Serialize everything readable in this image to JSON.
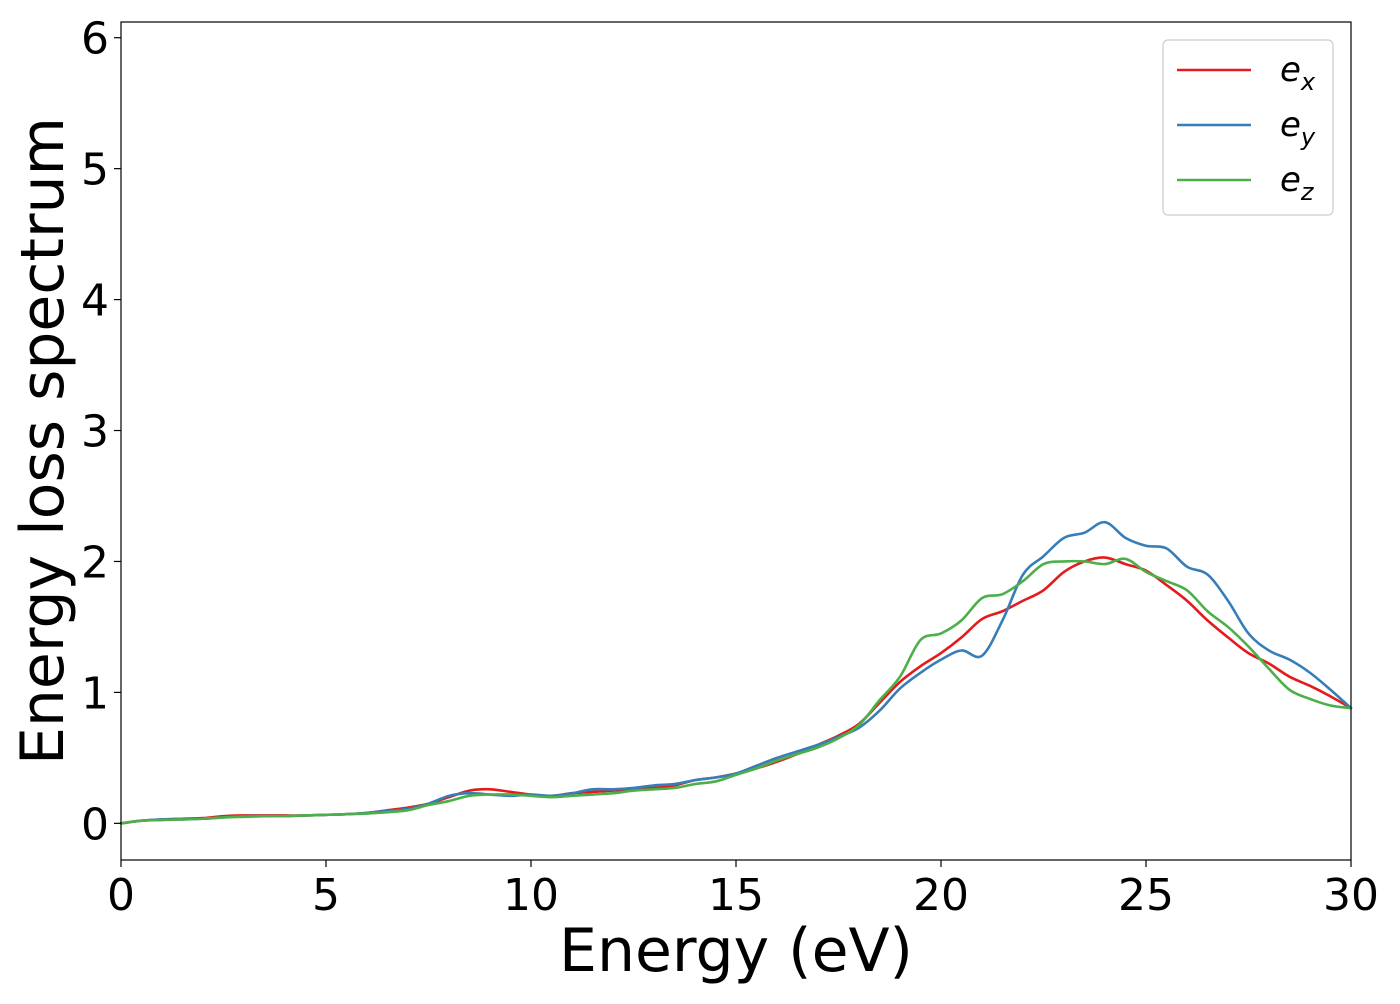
{
  "chart_data": {
    "type": "line",
    "title": "",
    "xlabel": "Energy (eV)",
    "ylabel": "Energy loss spectrum",
    "xlim": [
      0,
      30
    ],
    "ylim": [
      -0.28,
      6.12
    ],
    "xticks": [
      0,
      5,
      10,
      15,
      20,
      25,
      30
    ],
    "yticks": [
      0,
      1,
      2,
      3,
      4,
      5,
      6
    ],
    "grid": false,
    "legend_position": "top-right",
    "series": [
      {
        "name": "e_x",
        "legend": {
          "base": "e",
          "sub": "x"
        },
        "color": "#e41a1c",
        "x": [
          0,
          0.5,
          1,
          1.5,
          2,
          2.5,
          3,
          3.5,
          4,
          4.5,
          5,
          5.5,
          6,
          6.5,
          7,
          7.5,
          8,
          8.5,
          9,
          9.5,
          10,
          10.5,
          11,
          11.5,
          12,
          12.5,
          13,
          13.5,
          14,
          14.5,
          15,
          15.5,
          16,
          16.5,
          17,
          17.5,
          18,
          18.5,
          19,
          19.5,
          20,
          20.5,
          21,
          21.5,
          22,
          22.5,
          23,
          23.5,
          24,
          24.5,
          25,
          25.5,
          26,
          26.5,
          27,
          27.5,
          28,
          28.5,
          29,
          29.5,
          30
        ],
        "y": [
          0.0,
          0.02,
          0.03,
          0.035,
          0.04,
          0.055,
          0.06,
          0.06,
          0.06,
          0.06,
          0.065,
          0.07,
          0.08,
          0.1,
          0.12,
          0.15,
          0.2,
          0.25,
          0.26,
          0.24,
          0.22,
          0.21,
          0.23,
          0.24,
          0.25,
          0.26,
          0.27,
          0.29,
          0.33,
          0.35,
          0.38,
          0.42,
          0.47,
          0.53,
          0.6,
          0.67,
          0.76,
          0.92,
          1.08,
          1.2,
          1.3,
          1.42,
          1.56,
          1.62,
          1.7,
          1.78,
          1.92,
          2.0,
          2.03,
          1.98,
          1.93,
          1.82,
          1.7,
          1.55,
          1.42,
          1.3,
          1.22,
          1.12,
          1.05,
          0.97,
          0.88
        ]
      },
      {
        "name": "e_y",
        "legend": {
          "base": "e",
          "sub": "y"
        },
        "color": "#377eb8",
        "x": [
          0,
          0.5,
          1,
          1.5,
          2,
          2.5,
          3,
          3.5,
          4,
          4.5,
          5,
          5.5,
          6,
          6.5,
          7,
          7.5,
          8,
          8.5,
          9,
          9.5,
          10,
          10.5,
          11,
          11.5,
          12,
          12.5,
          13,
          13.5,
          14,
          14.5,
          15,
          15.5,
          16,
          16.5,
          17,
          17.5,
          18,
          18.5,
          19,
          19.5,
          20,
          20.5,
          21,
          21.5,
          22,
          22.5,
          23,
          23.5,
          24,
          24.5,
          25,
          25.5,
          26,
          26.5,
          27,
          27.5,
          28,
          28.5,
          29,
          29.5,
          30
        ],
        "y": [
          0.0,
          0.02,
          0.03,
          0.03,
          0.035,
          0.045,
          0.055,
          0.055,
          0.055,
          0.06,
          0.065,
          0.07,
          0.08,
          0.095,
          0.11,
          0.15,
          0.21,
          0.23,
          0.22,
          0.21,
          0.22,
          0.21,
          0.23,
          0.26,
          0.26,
          0.27,
          0.29,
          0.3,
          0.33,
          0.35,
          0.38,
          0.44,
          0.5,
          0.55,
          0.6,
          0.66,
          0.73,
          0.86,
          1.03,
          1.15,
          1.25,
          1.32,
          1.28,
          1.55,
          1.9,
          2.04,
          2.18,
          2.22,
          2.3,
          2.18,
          2.12,
          2.1,
          1.96,
          1.9,
          1.7,
          1.45,
          1.32,
          1.25,
          1.15,
          1.02,
          0.88
        ]
      },
      {
        "name": "e_z",
        "legend": {
          "base": "e",
          "sub": "z"
        },
        "color": "#4daf4a",
        "x": [
          0,
          0.5,
          1,
          1.5,
          2,
          2.5,
          3,
          3.5,
          4,
          4.5,
          5,
          5.5,
          6,
          6.5,
          7,
          7.5,
          8,
          8.5,
          9,
          9.5,
          10,
          10.5,
          11,
          11.5,
          12,
          12.5,
          13,
          13.5,
          14,
          14.5,
          15,
          15.5,
          16,
          16.5,
          17,
          17.5,
          18,
          18.5,
          19,
          19.5,
          20,
          20.5,
          21,
          21.5,
          22,
          22.5,
          23,
          23.5,
          24,
          24.5,
          25,
          25.5,
          26,
          26.5,
          27,
          27.5,
          28,
          28.5,
          29,
          29.5,
          30
        ],
        "y": [
          0.0,
          0.02,
          0.025,
          0.03,
          0.035,
          0.045,
          0.05,
          0.055,
          0.055,
          0.06,
          0.065,
          0.07,
          0.075,
          0.085,
          0.1,
          0.14,
          0.17,
          0.21,
          0.22,
          0.22,
          0.21,
          0.2,
          0.21,
          0.22,
          0.23,
          0.25,
          0.26,
          0.27,
          0.3,
          0.32,
          0.37,
          0.42,
          0.48,
          0.53,
          0.58,
          0.65,
          0.75,
          0.94,
          1.12,
          1.4,
          1.45,
          1.55,
          1.72,
          1.75,
          1.85,
          1.98,
          2.0,
          2.0,
          1.98,
          2.02,
          1.92,
          1.85,
          1.78,
          1.62,
          1.5,
          1.35,
          1.18,
          1.02,
          0.95,
          0.9,
          0.88
        ]
      }
    ]
  }
}
